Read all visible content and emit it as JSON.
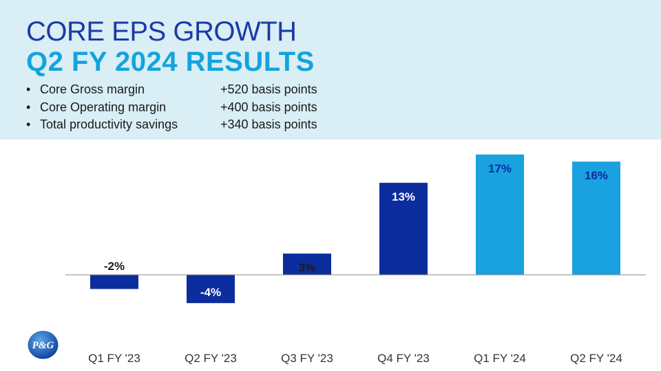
{
  "title": {
    "line1": "CORE EPS GROWTH",
    "line2": "Q2 FY 2024 RESULTS"
  },
  "bullets": [
    {
      "label": "Core Gross margin",
      "value": "+520 basis points"
    },
    {
      "label": "Core Operating margin",
      "value": "+400 basis points"
    },
    {
      "label": "Total productivity savings",
      "value": "+340 basis points"
    }
  ],
  "bullet_symbol": "•",
  "logo": {
    "text": "P&G"
  },
  "colors": {
    "banner": "#d9eef5",
    "title_primary": "#1c3aa6",
    "title_accent": "#14a3dd",
    "bar_fy23": "#0b2d9e",
    "bar_fy24": "#1aa2e0",
    "label_dark": "#1a1a1a",
    "label_on_dark": "#ffffff",
    "label_on_light": "#0b2d9e"
  },
  "chart_data": {
    "type": "bar",
    "title": "",
    "xlabel": "",
    "ylabel": "",
    "ylim": [
      -4,
      17
    ],
    "grid": false,
    "categories": [
      "Q1 FY '23",
      "Q2 FY '23",
      "Q3 FY '23",
      "Q4 FY '23",
      "Q1 FY '24",
      "Q2 FY '24"
    ],
    "values": [
      -2,
      -4,
      3,
      13,
      17,
      16
    ],
    "data_labels": [
      "-2%",
      "-4%",
      "3%",
      "13%",
      "17%",
      "16%"
    ],
    "fiscal_year": [
      "FY23",
      "FY23",
      "FY23",
      "FY23",
      "FY24",
      "FY24"
    ]
  }
}
